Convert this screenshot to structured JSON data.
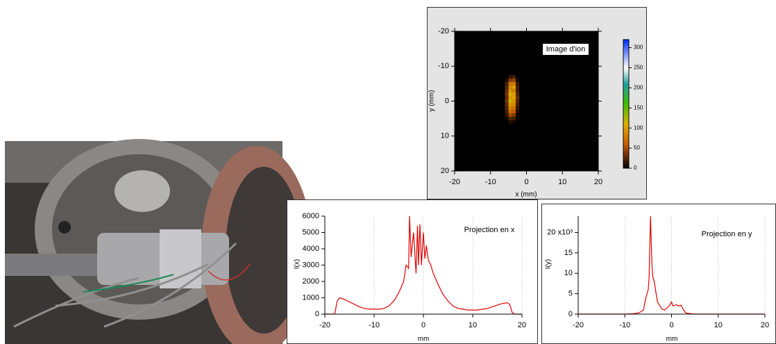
{
  "chart_data": [
    {
      "type": "heatmap",
      "annotation": "Image d'ion",
      "xlabel": "x (mm)",
      "ylabel": "y (mm)",
      "xlim": [
        -20,
        20
      ],
      "ylim": [
        20,
        -20
      ],
      "xticks": [
        -20,
        -10,
        0,
        10,
        20
      ],
      "yticks": [
        -20,
        -10,
        0,
        10,
        20
      ],
      "x": [
        -5.5,
        -4.5,
        -3.5,
        -2.5
      ],
      "y": [
        -7,
        -6,
        -5,
        -4,
        -3,
        -2,
        -1,
        0,
        1,
        2,
        3,
        4,
        5,
        6
      ],
      "z": [
        [
          0,
          15,
          20,
          0
        ],
        [
          10,
          40,
          45,
          5
        ],
        [
          20,
          75,
          80,
          15
        ],
        [
          25,
          90,
          100,
          20
        ],
        [
          30,
          95,
          85,
          20
        ],
        [
          35,
          110,
          100,
          25
        ],
        [
          30,
          100,
          105,
          30
        ],
        [
          35,
          115,
          95,
          25
        ],
        [
          30,
          95,
          90,
          20
        ],
        [
          25,
          85,
          75,
          15
        ],
        [
          20,
          70,
          60,
          10
        ],
        [
          15,
          50,
          40,
          5
        ],
        [
          5,
          25,
          20,
          0
        ],
        [
          0,
          10,
          5,
          0
        ]
      ],
      "clim": [
        0,
        320
      ],
      "cticks": [
        0,
        50,
        100,
        150,
        200,
        250,
        300
      ],
      "colorscale": [
        [
          0,
          "#000000"
        ],
        [
          60,
          "#c85a00"
        ],
        [
          110,
          "#e0b000"
        ],
        [
          160,
          "#40c000"
        ],
        [
          210,
          "#20a0a0"
        ],
        [
          250,
          "#ffffff"
        ],
        [
          320,
          "#0030ff"
        ]
      ]
    },
    {
      "type": "line",
      "annotation": "Projection en x",
      "xlabel": "mm",
      "ylabel": "I(x)",
      "color": "#e00000",
      "xlim": [
        -20,
        20
      ],
      "ylim": [
        0,
        6000
      ],
      "xticks": [
        -20,
        -10,
        0,
        10,
        20
      ],
      "yticks": [
        0,
        1000,
        2000,
        3000,
        4000,
        5000,
        6000
      ],
      "grid": true,
      "x": [
        -20,
        -18.5,
        -18,
        -17.5,
        -17,
        -16,
        -15,
        -14,
        -13,
        -12,
        -11,
        -10,
        -9,
        -8,
        -7,
        -6,
        -5,
        -4,
        -3.5,
        -3,
        -2.8,
        -2.5,
        -2,
        -1.5,
        -1.2,
        -1,
        -0.7,
        -0.4,
        0,
        0.3,
        0.6,
        1,
        1.5,
        2,
        3,
        4,
        5,
        6,
        7,
        8,
        9,
        10,
        11,
        12,
        13,
        14,
        15,
        16,
        17,
        17.5,
        18,
        18.5,
        20
      ],
      "values": [
        0,
        0,
        0,
        800,
        1000,
        900,
        750,
        600,
        450,
        350,
        300,
        300,
        300,
        350,
        500,
        800,
        1300,
        2000,
        3000,
        2800,
        6000,
        3500,
        5000,
        2500,
        5400,
        3000,
        5500,
        3000,
        5000,
        3400,
        4200,
        3300,
        3000,
        2500,
        1800,
        1200,
        800,
        500,
        350,
        300,
        250,
        250,
        250,
        300,
        350,
        450,
        550,
        650,
        700,
        600,
        100,
        0,
        0
      ]
    },
    {
      "type": "line",
      "annotation": "Projection en y",
      "xlabel": "mm",
      "ylabel": "I(y)",
      "color": "#e00000",
      "xlim": [
        -20,
        20
      ],
      "ylim": [
        0,
        24000
      ],
      "xticks": [
        -20,
        -10,
        0,
        10,
        20
      ],
      "yticks": [
        0,
        5,
        10,
        15,
        {
          "value": 20000,
          "label": "20 x10³"
        }
      ],
      "yticks_scale": 1000,
      "grid": true,
      "x": [
        -20,
        -10,
        -8,
        -7,
        -6,
        -5.5,
        -5,
        -4.8,
        -4.5,
        -4.2,
        -4,
        -3.7,
        -3.3,
        -3,
        -2.5,
        -2,
        -1.5,
        -1,
        -0.5,
        0,
        0.3,
        1,
        1.5,
        2,
        2.5,
        3,
        4,
        5,
        20
      ],
      "values": [
        0,
        0,
        100,
        300,
        1000,
        4000,
        6000,
        9000,
        24000,
        12000,
        9000,
        8000,
        5000,
        3000,
        2000,
        1200,
        1000,
        1500,
        2000,
        3000,
        2000,
        2300,
        2000,
        2200,
        1200,
        300,
        100,
        0,
        0
      ]
    }
  ]
}
